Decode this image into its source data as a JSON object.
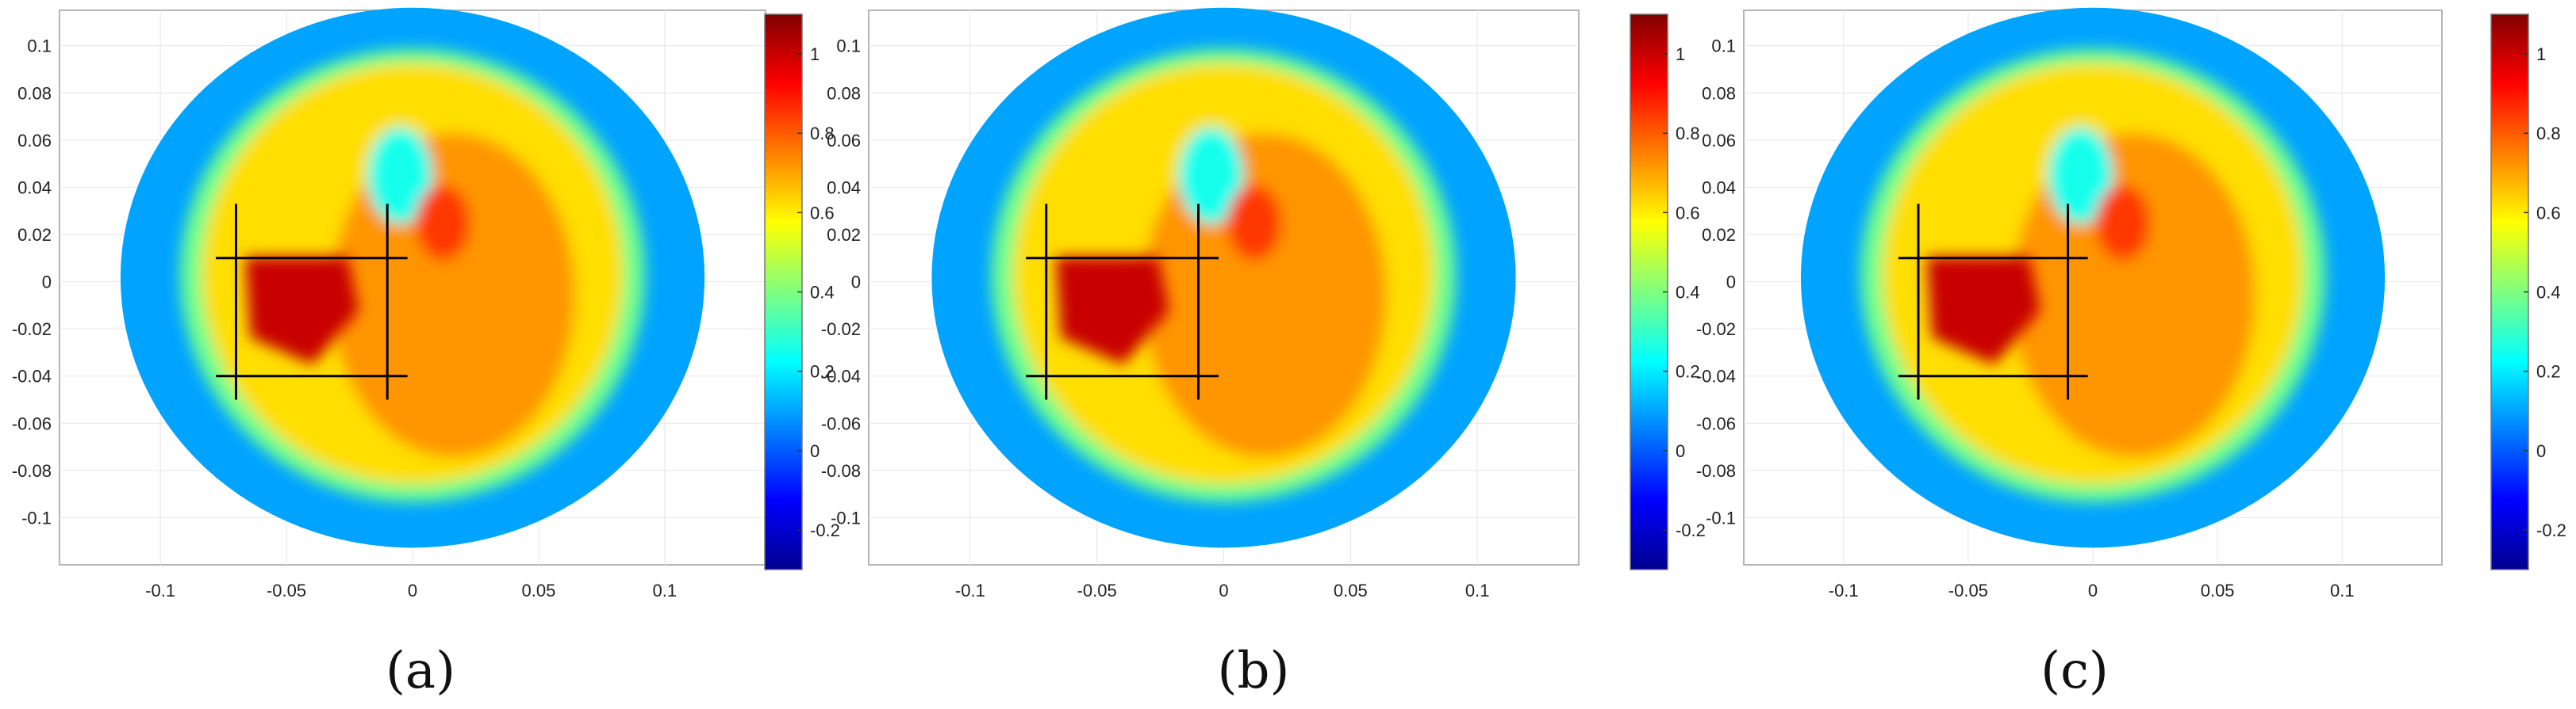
{
  "chart_data": [
    {
      "type": "heatmap",
      "panel_label": "(a)",
      "xticks": [
        "-0.1",
        "-0.05",
        "0",
        "0.05",
        "0.1"
      ],
      "yticks": [
        "0.1",
        "0.08",
        "0.06",
        "0.04",
        "0.02",
        "0",
        "-0.02",
        "-0.04",
        "-0.06",
        "-0.08",
        "-0.1"
      ],
      "xlim": [
        -0.14,
        0.14
      ],
      "ylim": [
        -0.12,
        0.115
      ],
      "colorbar": {
        "ticks": [
          "1",
          "0.8",
          "0.6",
          "0.4",
          "0.2",
          "0",
          "-0.2"
        ],
        "range": [
          -0.3,
          1.1
        ],
        "colormap": "jet"
      },
      "inclusion": {
        "center": [
          -0.045,
          -0.01
        ],
        "value": 1.0
      },
      "crosshair": {
        "x": [
          -0.07,
          -0.01
        ],
        "y": [
          0.01,
          -0.04
        ]
      }
    },
    {
      "type": "heatmap",
      "panel_label": "(b)",
      "xticks": [
        "-0.1",
        "-0.05",
        "0",
        "0.05",
        "0.1"
      ],
      "yticks": [
        "0.1",
        "0.08",
        "0.06",
        "0.04",
        "0.02",
        "0",
        "-0.02",
        "-0.04",
        "-0.06",
        "-0.08",
        "-0.1"
      ],
      "xlim": [
        -0.14,
        0.14
      ],
      "ylim": [
        -0.12,
        0.115
      ],
      "colorbar": {
        "ticks": [
          "1",
          "0.8",
          "0.6",
          "0.4",
          "0.2",
          "0",
          "-0.2"
        ],
        "range": [
          -0.3,
          1.1
        ],
        "colormap": "jet"
      },
      "inclusion": {
        "center": [
          -0.045,
          -0.01
        ],
        "value": 1.0
      },
      "crosshair": {
        "x": [
          -0.07,
          -0.01
        ],
        "y": [
          0.01,
          -0.04
        ]
      }
    },
    {
      "type": "heatmap",
      "panel_label": "(c)",
      "xticks": [
        "-0.1",
        "-0.05",
        "0",
        "0.05",
        "0.1"
      ],
      "yticks": [
        "0.1",
        "0.08",
        "0.06",
        "0.04",
        "0.02",
        "0",
        "-0.02",
        "-0.04",
        "-0.06",
        "-0.08",
        "-0.1"
      ],
      "xlim": [
        -0.14,
        0.14
      ],
      "ylim": [
        -0.12,
        0.115
      ],
      "colorbar": {
        "ticks": [
          "1",
          "0.8",
          "0.6",
          "0.4",
          "0.2",
          "0",
          "-0.2"
        ],
        "range": [
          -0.3,
          1.1
        ],
        "colormap": "jet"
      },
      "inclusion": {
        "center": [
          -0.045,
          -0.01
        ],
        "value": 1.0
      },
      "crosshair": {
        "x": [
          -0.07,
          -0.01
        ],
        "y": [
          0.01,
          -0.04
        ]
      }
    }
  ]
}
